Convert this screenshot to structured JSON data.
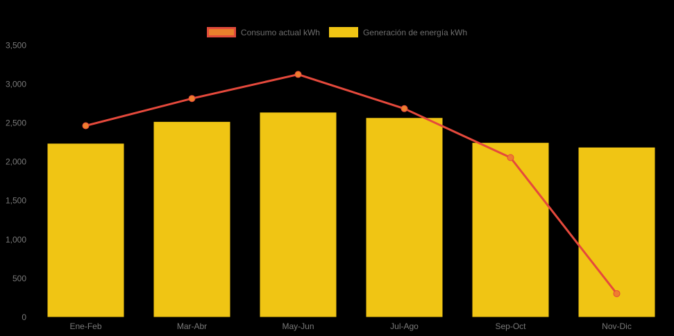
{
  "background_color": "#000000",
  "legend": {
    "position": "top-center",
    "items": [
      {
        "label": "Consumo actual kWh",
        "swatch_fill": "#E8802C",
        "swatch_border": "#E14B3B",
        "icon": "line-series-swatch-icon",
        "key": "consumo"
      },
      {
        "label": "Generación de energía kWh",
        "swatch_fill": "#F0C514",
        "swatch_border": "#F0C514",
        "icon": "bar-series-swatch-icon",
        "key": "generacion"
      }
    ]
  },
  "chart_data": {
    "type": "bar+line",
    "title": "",
    "xlabel": "",
    "ylabel": "",
    "categories": [
      "Ene-Feb",
      "Mar-Abr",
      "May-Jun",
      "Jul-Ago",
      "Sep-Oct",
      "Nov-Dic"
    ],
    "series": [
      {
        "name": "Generación de energía kWh",
        "type": "bar",
        "color": "#F0C514",
        "values": [
          2230,
          2510,
          2630,
          2560,
          2240,
          2180
        ]
      },
      {
        "name": "Consumo actual kWh",
        "type": "line",
        "color": "#E5493C",
        "marker_color": "#EE7E2E",
        "values": [
          2460,
          2810,
          3120,
          2680,
          2050,
          300
        ]
      }
    ],
    "ylim": [
      0,
      3500
    ],
    "y_ticks": [
      0,
      500,
      1000,
      1500,
      2000,
      2500,
      3000,
      3500
    ],
    "y_tick_labels": [
      "0",
      "500",
      "1,000",
      "1,500",
      "2,000",
      "2,500",
      "3,000",
      "3,500"
    ],
    "grid": false,
    "legend_position": "top-center",
    "axis_label_color": "#7a7a7a"
  }
}
